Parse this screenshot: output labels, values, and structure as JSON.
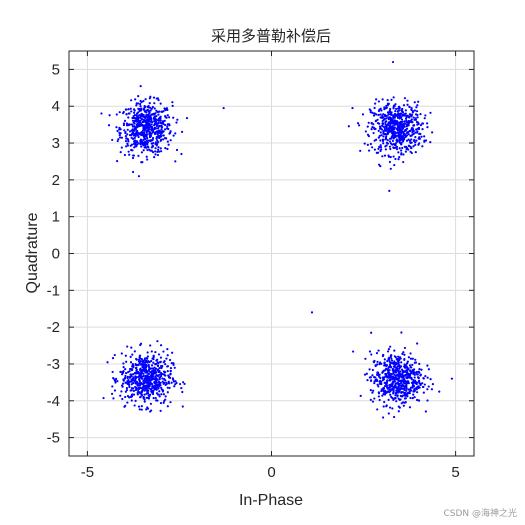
{
  "chart_data": {
    "type": "scatter",
    "title": "采用多普勒补偿后",
    "xlabel": "In-Phase",
    "ylabel": "Quadrature",
    "xlim": [
      -5.5,
      5.5
    ],
    "ylim": [
      -5.5,
      5.5
    ],
    "xticks": [
      -5,
      0,
      5
    ],
    "xtick_labels": [
      "-5",
      "0",
      "5"
    ],
    "yticks": [
      5,
      4,
      3,
      2,
      1,
      0,
      -1,
      -2,
      -3,
      -4,
      -5
    ],
    "ytick_labels": [
      "5",
      "4",
      "3",
      "2",
      "1",
      "0",
      "-1",
      "-2",
      "-3",
      "-4",
      "-5"
    ],
    "grid": true,
    "marker_color": "#0000ff",
    "clusters": [
      {
        "center": [
          -3.4,
          3.4
        ],
        "spread": 0.35,
        "count": 600
      },
      {
        "center": [
          3.4,
          3.4
        ],
        "spread": 0.35,
        "count": 600
      },
      {
        "center": [
          -3.4,
          -3.4
        ],
        "spread": 0.35,
        "count": 600
      },
      {
        "center": [
          3.4,
          -3.4
        ],
        "spread": 0.35,
        "count": 600
      }
    ],
    "outliers": [
      [
        -1.3,
        3.95
      ],
      [
        1.1,
        -1.6
      ],
      [
        2.2,
        3.95
      ],
      [
        3.3,
        5.2
      ],
      [
        3.2,
        1.7
      ],
      [
        4.9,
        -3.4
      ]
    ]
  },
  "watermark": "CSDN @海神之光"
}
